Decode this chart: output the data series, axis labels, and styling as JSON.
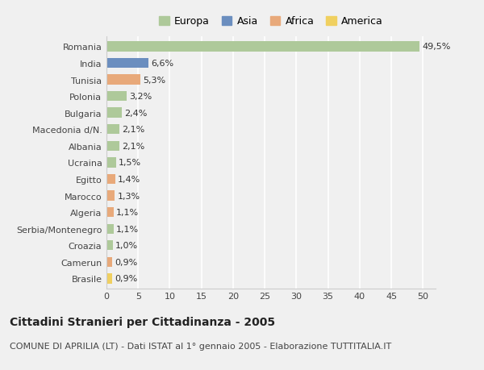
{
  "countries": [
    "Romania",
    "India",
    "Tunisia",
    "Polonia",
    "Bulgaria",
    "Macedonia d/N.",
    "Albania",
    "Ucraina",
    "Egitto",
    "Marocco",
    "Algeria",
    "Serbia/Montenegro",
    "Croazia",
    "Camerun",
    "Brasile"
  ],
  "values": [
    49.5,
    6.6,
    5.3,
    3.2,
    2.4,
    2.1,
    2.1,
    1.5,
    1.4,
    1.3,
    1.1,
    1.1,
    1.0,
    0.9,
    0.9
  ],
  "labels": [
    "49,5%",
    "6,6%",
    "5,3%",
    "3,2%",
    "2,4%",
    "2,1%",
    "2,1%",
    "1,5%",
    "1,4%",
    "1,3%",
    "1,1%",
    "1,1%",
    "1,0%",
    "0,9%",
    "0,9%"
  ],
  "continents": [
    "Europa",
    "Asia",
    "Africa",
    "Europa",
    "Europa",
    "Europa",
    "Europa",
    "Europa",
    "Africa",
    "Africa",
    "Africa",
    "Europa",
    "Europa",
    "Africa",
    "America"
  ],
  "continent_colors": {
    "Europa": "#aec99a",
    "Asia": "#6b8ebf",
    "Africa": "#e8a97a",
    "America": "#f0d060"
  },
  "legend_entries": [
    "Europa",
    "Asia",
    "Africa",
    "America"
  ],
  "legend_colors": [
    "#aec99a",
    "#6b8ebf",
    "#e8a97a",
    "#f0d060"
  ],
  "xlim": [
    0,
    52
  ],
  "xticks": [
    0,
    5,
    10,
    15,
    20,
    25,
    30,
    35,
    40,
    45,
    50
  ],
  "title": "Cittadini Stranieri per Cittadinanza - 2005",
  "subtitle": "COMUNE DI APRILIA (LT) - Dati ISTAT al 1° gennaio 2005 - Elaborazione TUTTITALIA.IT",
  "background_color": "#f0f0f0",
  "bar_height": 0.6,
  "label_fontsize": 8,
  "ytick_fontsize": 8,
  "xtick_fontsize": 8,
  "title_fontsize": 10,
  "subtitle_fontsize": 8
}
